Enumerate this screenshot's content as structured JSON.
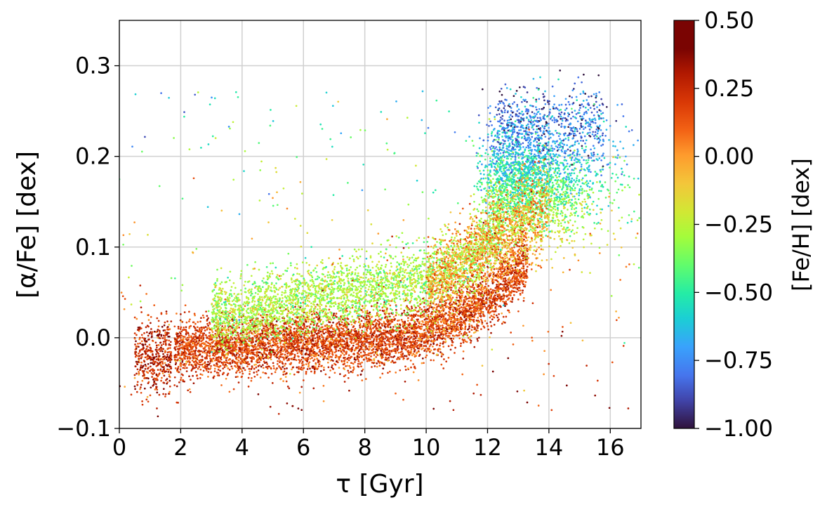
{
  "chart_data": {
    "type": "scatter",
    "xlabel": "τ [Gyr]",
    "ylabel": "[α/Fe] [dex]",
    "xlim": [
      0,
      17
    ],
    "ylim": [
      -0.1,
      0.35
    ],
    "xticks": [
      0,
      2,
      4,
      6,
      8,
      10,
      12,
      14,
      16
    ],
    "yticks": [
      -0.1,
      0.0,
      0.1,
      0.2,
      0.3
    ],
    "xtick_labels": [
      "0",
      "2",
      "4",
      "6",
      "8",
      "10",
      "12",
      "14",
      "16"
    ],
    "ytick_labels": [
      "−0.1",
      "0.0",
      "0.1",
      "0.2",
      "0.3"
    ],
    "grid": true,
    "colormap": "turbo",
    "colorbar": {
      "label": "[Fe/H] [dex]",
      "range": [
        -1.0,
        0.5
      ],
      "ticks": [
        0.5,
        0.25,
        0.0,
        -0.25,
        -0.5,
        -0.75,
        -1.0
      ],
      "tick_labels": [
        "0.50",
        "0.25",
        "0.00",
        "−0.25",
        "−0.50",
        "−0.75",
        "−1.00"
      ]
    },
    "distribution": {
      "description_points": [
        {
          "age_gyr": 0.8,
          "alpha_fe": -0.02,
          "fe_h": 0.25
        },
        {
          "age_gyr": 2.5,
          "alpha_fe": -0.01,
          "fe_h": 0.25
        },
        {
          "age_gyr": 5.0,
          "alpha_fe": -0.005,
          "fe_h": 0.2
        },
        {
          "age_gyr": 5.0,
          "alpha_fe": 0.03,
          "fe_h": -0.25
        },
        {
          "age_gyr": 8.0,
          "alpha_fe": 0.0,
          "fe_h": 0.2
        },
        {
          "age_gyr": 8.0,
          "alpha_fe": 0.04,
          "fe_h": -0.3
        },
        {
          "age_gyr": 10.0,
          "alpha_fe": 0.02,
          "fe_h": 0.2
        },
        {
          "age_gyr": 10.0,
          "alpha_fe": 0.06,
          "fe_h": -0.3
        },
        {
          "age_gyr": 12.0,
          "alpha_fe": 0.08,
          "fe_h": 0.1
        },
        {
          "age_gyr": 12.5,
          "alpha_fe": 0.17,
          "fe_h": -0.35
        },
        {
          "age_gyr": 13.5,
          "alpha_fe": 0.2,
          "fe_h": -0.5
        },
        {
          "age_gyr": 14.0,
          "alpha_fe": 0.24,
          "fe_h": -0.8
        },
        {
          "age_gyr": 15.0,
          "alpha_fe": 0.2,
          "fe_h": -0.4
        }
      ]
    }
  }
}
